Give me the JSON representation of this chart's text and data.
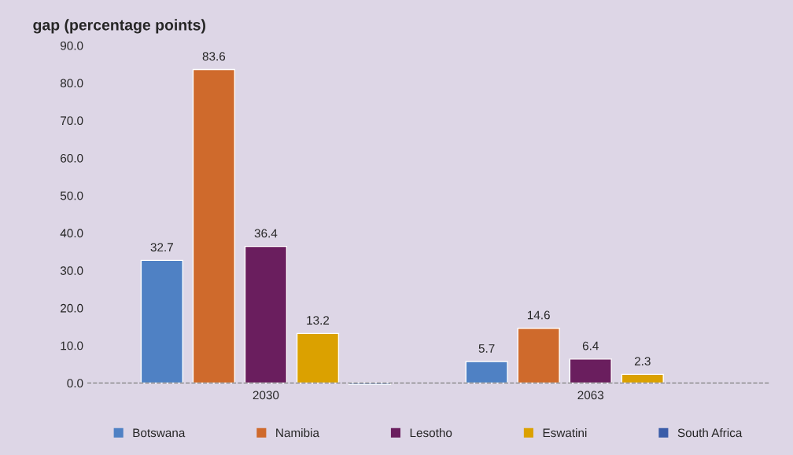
{
  "chart_data": {
    "type": "bar",
    "title": "gap (percentage points)",
    "categories": [
      "2030",
      "2063"
    ],
    "series": [
      {
        "name": "Botswana",
        "color": "#4f81c4",
        "values": [
          32.7,
          5.7
        ],
        "value_labels": [
          "32.7",
          "5.7"
        ]
      },
      {
        "name": "Namibia",
        "color": "#cf6a2c",
        "values": [
          83.6,
          14.6
        ],
        "value_labels": [
          "83.6",
          "14.6"
        ]
      },
      {
        "name": "Lesotho",
        "color": "#6a1e5e",
        "values": [
          36.4,
          6.4
        ],
        "value_labels": [
          "36.4",
          "6.4"
        ]
      },
      {
        "name": "Eswatini",
        "color": "#dba100",
        "values": [
          13.2,
          2.3
        ],
        "value_labels": [
          "13.2",
          "2.3"
        ]
      },
      {
        "name": "South Africa",
        "color": "#3a5ca8",
        "values": [
          -0.4,
          null
        ],
        "value_labels": [
          null,
          null
        ]
      }
    ],
    "ylim": [
      -1,
      90
    ],
    "yticks": [
      {
        "value": 0,
        "label": "0.0"
      },
      {
        "value": 10,
        "label": "10.0"
      },
      {
        "value": 20,
        "label": "20.0"
      },
      {
        "value": 30,
        "label": "30.0"
      },
      {
        "value": 40,
        "label": "40.0"
      },
      {
        "value": 50,
        "label": "50.0"
      },
      {
        "value": 60,
        "label": "60.0"
      },
      {
        "value": 70,
        "label": "70.0"
      },
      {
        "value": 80,
        "label": "80.0"
      },
      {
        "value": 90,
        "label": "90.0"
      }
    ],
    "ref_lines": [
      {
        "axis": "y",
        "value": 0,
        "color": "#808080",
        "line_style": "dashed"
      }
    ],
    "grid": false,
    "legend": "bottom"
  }
}
